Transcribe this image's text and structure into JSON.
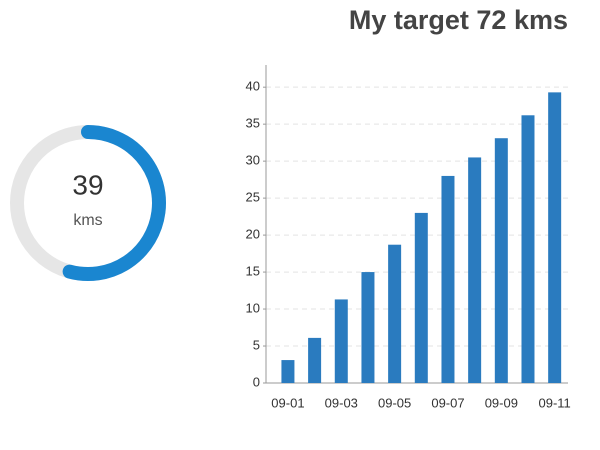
{
  "chart_data": [
    {
      "type": "gauge",
      "value": 39,
      "max": 72,
      "unit": "kms",
      "color": "#1a86d0",
      "track_color": "#e6e6e6"
    },
    {
      "type": "bar",
      "title": "My target 72 kms",
      "categories": [
        "09-01",
        null,
        "09-03",
        null,
        "09-05",
        null,
        "09-07",
        null,
        "09-09",
        null,
        "09-11"
      ],
      "values": [
        3.1,
        6.1,
        11.3,
        15,
        18.7,
        23,
        28,
        30.5,
        33.1,
        36.2,
        39.3
      ],
      "color": "#2a7bbf",
      "ylim": [
        0,
        43
      ],
      "yticks": [
        0,
        5,
        10,
        15,
        20,
        25,
        30,
        35,
        40
      ],
      "grid": true
    }
  ]
}
